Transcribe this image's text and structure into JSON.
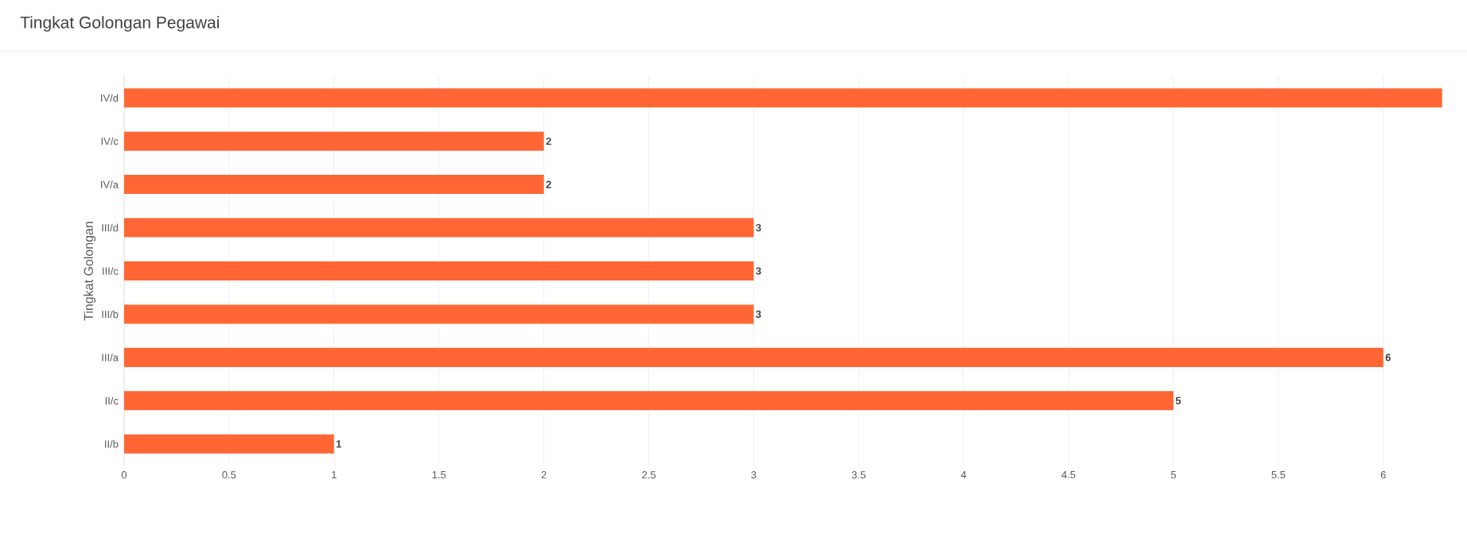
{
  "chart_data": {
    "type": "bar",
    "orientation": "horizontal",
    "title": "Tingkat Golongan Pegawai",
    "ylabel": "Tingkat Golongan",
    "categories": [
      "IV/d",
      "IV/c",
      "IV/a",
      "III/d",
      "III/c",
      "III/b",
      "III/a",
      "II/c",
      "II/b"
    ],
    "values": [
      6.28,
      2,
      2,
      3,
      3,
      3,
      6,
      5,
      1
    ],
    "value_labels": [
      null,
      "2",
      "2",
      "3",
      "3",
      "3",
      "6",
      "5",
      "1"
    ],
    "color": "#ff6633",
    "xlim": [
      0,
      6.3
    ],
    "xticks": [
      0,
      0.5,
      1,
      1.5,
      2,
      2.5,
      3,
      3.5,
      4,
      4.5,
      5,
      5.5,
      6
    ],
    "grid": "x"
  }
}
